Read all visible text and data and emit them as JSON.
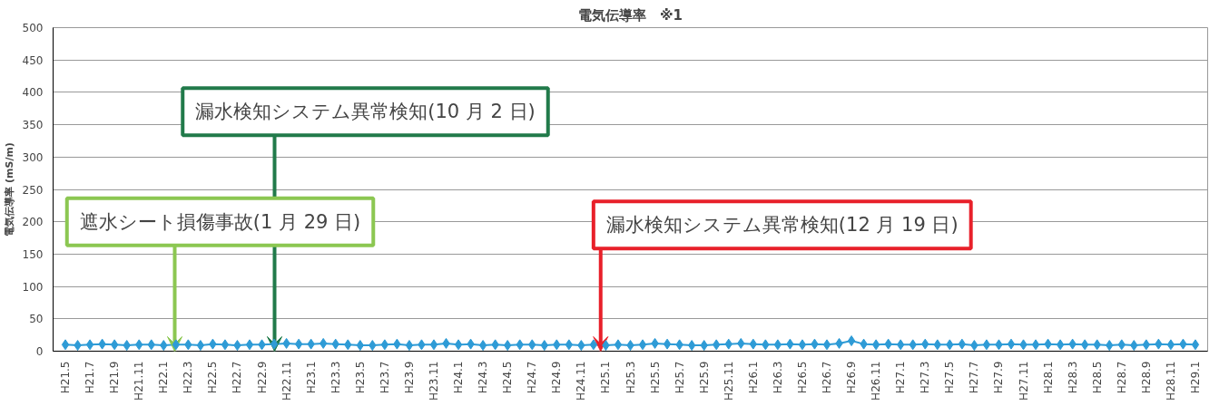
{
  "chart_data": {
    "type": "line",
    "title": "電気伝導率　※1",
    "ylabel": "電気伝導率 (mS/m)",
    "x": [
      "2009-05",
      "2009-06",
      "2009-07",
      "2009-08",
      "2009-09",
      "2009-10",
      "2009-11",
      "2009-12",
      "2010-01",
      "2010-02",
      "2010-03",
      "2010-04",
      "2010-05",
      "2010-06",
      "2010-07",
      "2010-08",
      "2010-09",
      "2010-10",
      "2010-11",
      "2010-12",
      "2011-01",
      "2011-02",
      "2011-03",
      "2011-04",
      "2011-05",
      "2011-06",
      "2011-07",
      "2011-08",
      "2011-09",
      "2011-10",
      "2011-11",
      "2011-12",
      "2012-01",
      "2012-02",
      "2012-03",
      "2012-04",
      "2012-05",
      "2012-06",
      "2012-07",
      "2012-08",
      "2012-09",
      "2012-10",
      "2012-11",
      "2012-12",
      "2013-01",
      "2013-02",
      "2013-03",
      "2013-04",
      "2013-05",
      "2013-06",
      "2013-07",
      "2013-08",
      "2013-09",
      "2013-10",
      "2013-11",
      "2013-12",
      "2014-01",
      "2014-02",
      "2014-03",
      "2014-04",
      "2014-05",
      "2014-06",
      "2014-07",
      "2014-08",
      "2014-09",
      "2014-10",
      "2014-11",
      "2014-12",
      "2015-01",
      "2015-02",
      "2015-03",
      "2015-04",
      "2015-05",
      "2015-06",
      "2015-07",
      "2015-08",
      "2015-09",
      "2015-10",
      "2015-11",
      "2015-12",
      "2016-01",
      "2016-02",
      "2016-03",
      "2016-04",
      "2016-05",
      "2016-06",
      "2016-07",
      "2016-08",
      "2016-09",
      "2016-10",
      "2016-11",
      "2016-12",
      "2017-01"
    ],
    "series": [
      {
        "color": "#2e9bd6",
        "values": [
          10,
          9,
          10,
          11,
          10,
          9,
          10,
          10,
          9,
          10,
          10,
          9,
          11,
          10,
          9,
          10,
          10,
          11,
          12,
          11,
          11,
          12,
          11,
          10,
          9,
          9,
          10,
          11,
          9,
          10,
          10,
          12,
          10,
          11,
          9,
          10,
          9,
          10,
          10,
          9,
          10,
          10,
          9,
          10,
          9,
          10,
          9,
          10,
          12,
          11,
          10,
          9,
          9,
          10,
          11,
          12,
          11,
          10,
          10,
          11,
          10,
          11,
          10,
          12,
          16,
          11,
          10,
          11,
          10,
          10,
          11,
          10,
          10,
          11,
          9,
          10,
          10,
          11,
          10,
          10,
          11,
          10,
          11,
          10,
          10,
          9,
          10,
          9,
          10,
          11,
          10,
          11,
          10
        ]
      }
    ],
    "xlim": [
      "2009-04",
      "2017-02"
    ],
    "xticks": [
      {
        "value": "2009-05",
        "label": "H21.5"
      },
      {
        "value": "2009-07",
        "label": "H21.7"
      },
      {
        "value": "2009-09",
        "label": "H21.9"
      },
      {
        "value": "2009-11",
        "label": "H21.11"
      },
      {
        "value": "2010-01",
        "label": "H22.1"
      },
      {
        "value": "2010-03",
        "label": "H22.3"
      },
      {
        "value": "2010-05",
        "label": "H22.5"
      },
      {
        "value": "2010-07",
        "label": "H22.7"
      },
      {
        "value": "2010-09",
        "label": "H22.9"
      },
      {
        "value": "2010-11",
        "label": "H22.11"
      },
      {
        "value": "2011-01",
        "label": "H23.1"
      },
      {
        "value": "2011-03",
        "label": "H23.3"
      },
      {
        "value": "2011-05",
        "label": "H23.5"
      },
      {
        "value": "2011-07",
        "label": "H23.7"
      },
      {
        "value": "2011-09",
        "label": "H23.9"
      },
      {
        "value": "2011-11",
        "label": "H23.11"
      },
      {
        "value": "2012-01",
        "label": "H24.1"
      },
      {
        "value": "2012-03",
        "label": "H24.3"
      },
      {
        "value": "2012-05",
        "label": "H24.5"
      },
      {
        "value": "2012-07",
        "label": "H24.7"
      },
      {
        "value": "2012-09",
        "label": "H24.9"
      },
      {
        "value": "2012-11",
        "label": "H24.11"
      },
      {
        "value": "2013-01",
        "label": "H25.1"
      },
      {
        "value": "2013-03",
        "label": "H25.3"
      },
      {
        "value": "2013-05",
        "label": "H25.5"
      },
      {
        "value": "2013-07",
        "label": "H25.7"
      },
      {
        "value": "2013-09",
        "label": "H25.9"
      },
      {
        "value": "2013-11",
        "label": "H25.11"
      },
      {
        "value": "2014-01",
        "label": "H26.1"
      },
      {
        "value": "2014-03",
        "label": "H26.3"
      },
      {
        "value": "2014-05",
        "label": "H26.5"
      },
      {
        "value": "2014-07",
        "label": "H26.7"
      },
      {
        "value": "2014-09",
        "label": "H26.9"
      },
      {
        "value": "2014-11",
        "label": "H26.11"
      },
      {
        "value": "2015-01",
        "label": "H27.1"
      },
      {
        "value": "2015-03",
        "label": "H27.3"
      },
      {
        "value": "2015-05",
        "label": "H27.5"
      },
      {
        "value": "2015-07",
        "label": "H27.7"
      },
      {
        "value": "2015-09",
        "label": "H27.9"
      },
      {
        "value": "2015-11",
        "label": "H27.11"
      },
      {
        "value": "2016-01",
        "label": "H28.1"
      },
      {
        "value": "2016-03",
        "label": "H28.3"
      },
      {
        "value": "2016-05",
        "label": "H28.5"
      },
      {
        "value": "2016-07",
        "label": "H28.7"
      },
      {
        "value": "2016-09",
        "label": "H28.9"
      },
      {
        "value": "2016-11",
        "label": "H28.11"
      },
      {
        "value": "2017-01",
        "label": "H29.1"
      }
    ],
    "ylim": [
      0,
      500
    ],
    "yticks": [
      0,
      50,
      100,
      150,
      200,
      250,
      300,
      350,
      400,
      450,
      500
    ],
    "grid": "y",
    "marker": "diamond",
    "line_style": "solid",
    "annotations": [
      {
        "text": "遮水シート損傷事故(1 月 29 日)",
        "x": "2010-01-29",
        "y": 0
      },
      {
        "text": "漏水検知システム異常検知(10 月 2 日)",
        "x": "2010-10-02",
        "y": 0
      },
      {
        "text": "漏水検知システム異常検知(12 月 19 日)",
        "x": "2012-12-19",
        "y": 0
      }
    ]
  }
}
